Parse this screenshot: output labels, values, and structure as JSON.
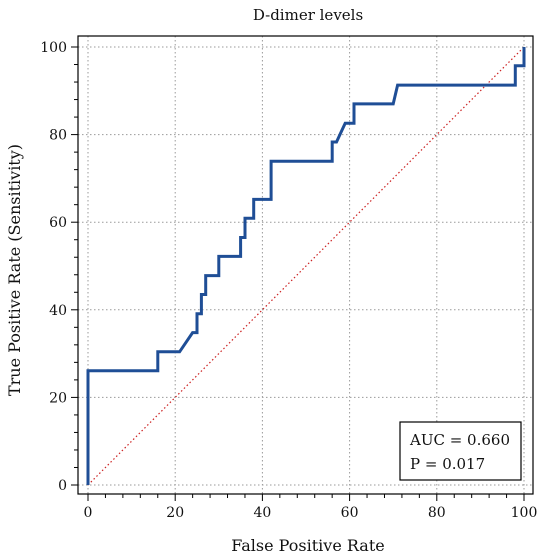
{
  "chart_data": {
    "type": "line",
    "title": "D-dimer levels",
    "xlabel": "False Positive Rate",
    "ylabel": "True Positive Rate (Sensitivity)",
    "xlim": [
      0,
      100
    ],
    "ylim": [
      0,
      100
    ],
    "x_ticks": [
      0,
      20,
      40,
      60,
      80,
      100
    ],
    "y_ticks": [
      0,
      20,
      40,
      60,
      80,
      100
    ],
    "grid": true,
    "series": [
      {
        "color": "#1f4e96",
        "points": [
          [
            0,
            0
          ],
          [
            0,
            26.1
          ],
          [
            16,
            26.1
          ],
          [
            16,
            30.4
          ],
          [
            21,
            30.4
          ],
          [
            24,
            34.8
          ],
          [
            25,
            34.8
          ],
          [
            25,
            39.1
          ],
          [
            26,
            39.1
          ],
          [
            26,
            43.5
          ],
          [
            27,
            43.5
          ],
          [
            27,
            47.8
          ],
          [
            30,
            47.8
          ],
          [
            30,
            52.2
          ],
          [
            35,
            52.2
          ],
          [
            35,
            56.5
          ],
          [
            36,
            56.5
          ],
          [
            36,
            60.9
          ],
          [
            38,
            60.9
          ],
          [
            38,
            65.2
          ],
          [
            42,
            65.2
          ],
          [
            42,
            73.9
          ],
          [
            56,
            73.9
          ],
          [
            56,
            78.3
          ],
          [
            57,
            78.3
          ],
          [
            59,
            82.6
          ],
          [
            61,
            82.6
          ],
          [
            61,
            87.0
          ],
          [
            70,
            87.0
          ],
          [
            71,
            91.3
          ],
          [
            98,
            91.3
          ],
          [
            98,
            95.7
          ],
          [
            100,
            95.7
          ],
          [
            100,
            100
          ]
        ]
      },
      {
        "color": "#cc2222",
        "style": "dotted",
        "points": [
          [
            0,
            0
          ],
          [
            100,
            100
          ]
        ]
      }
    ],
    "annotation": {
      "lines": [
        "AUC = 0.660",
        "P = 0.017"
      ]
    }
  }
}
